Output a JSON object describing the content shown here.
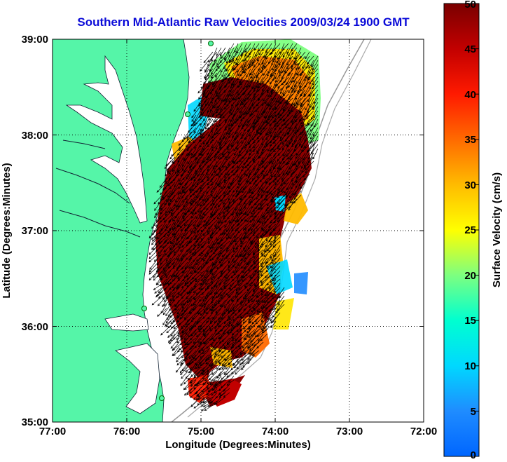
{
  "title": "Southern Mid-Atlantic Raw Velocities 2009/03/24 1900 GMT",
  "x_axis": {
    "label": "Longitude (Degrees:Minutes)",
    "ticks": [
      "77:00",
      "76:00",
      "75:00",
      "74:00",
      "73:00",
      "72:00"
    ]
  },
  "y_axis": {
    "label": "Latitude (Degrees:Minutes)",
    "ticks": [
      "39:00",
      "38:00",
      "37:00",
      "36:00",
      "35:00"
    ]
  },
  "colorbar": {
    "label": "Surface Velocity (cm/s)",
    "ticks": [
      "50",
      "45",
      "40",
      "35",
      "30",
      "25",
      "20",
      "15",
      "10",
      "5",
      "0"
    ],
    "min": 0,
    "max": 50,
    "colormap": "jet"
  },
  "map": {
    "lon_range": [
      -77,
      -72
    ],
    "lat_range": [
      35,
      39
    ],
    "land_color": "#55f5a8",
    "water_color": "#ffffff",
    "grid": true,
    "vector_color": "#000000",
    "dominant_current_speed_cm_s": 50
  }
}
